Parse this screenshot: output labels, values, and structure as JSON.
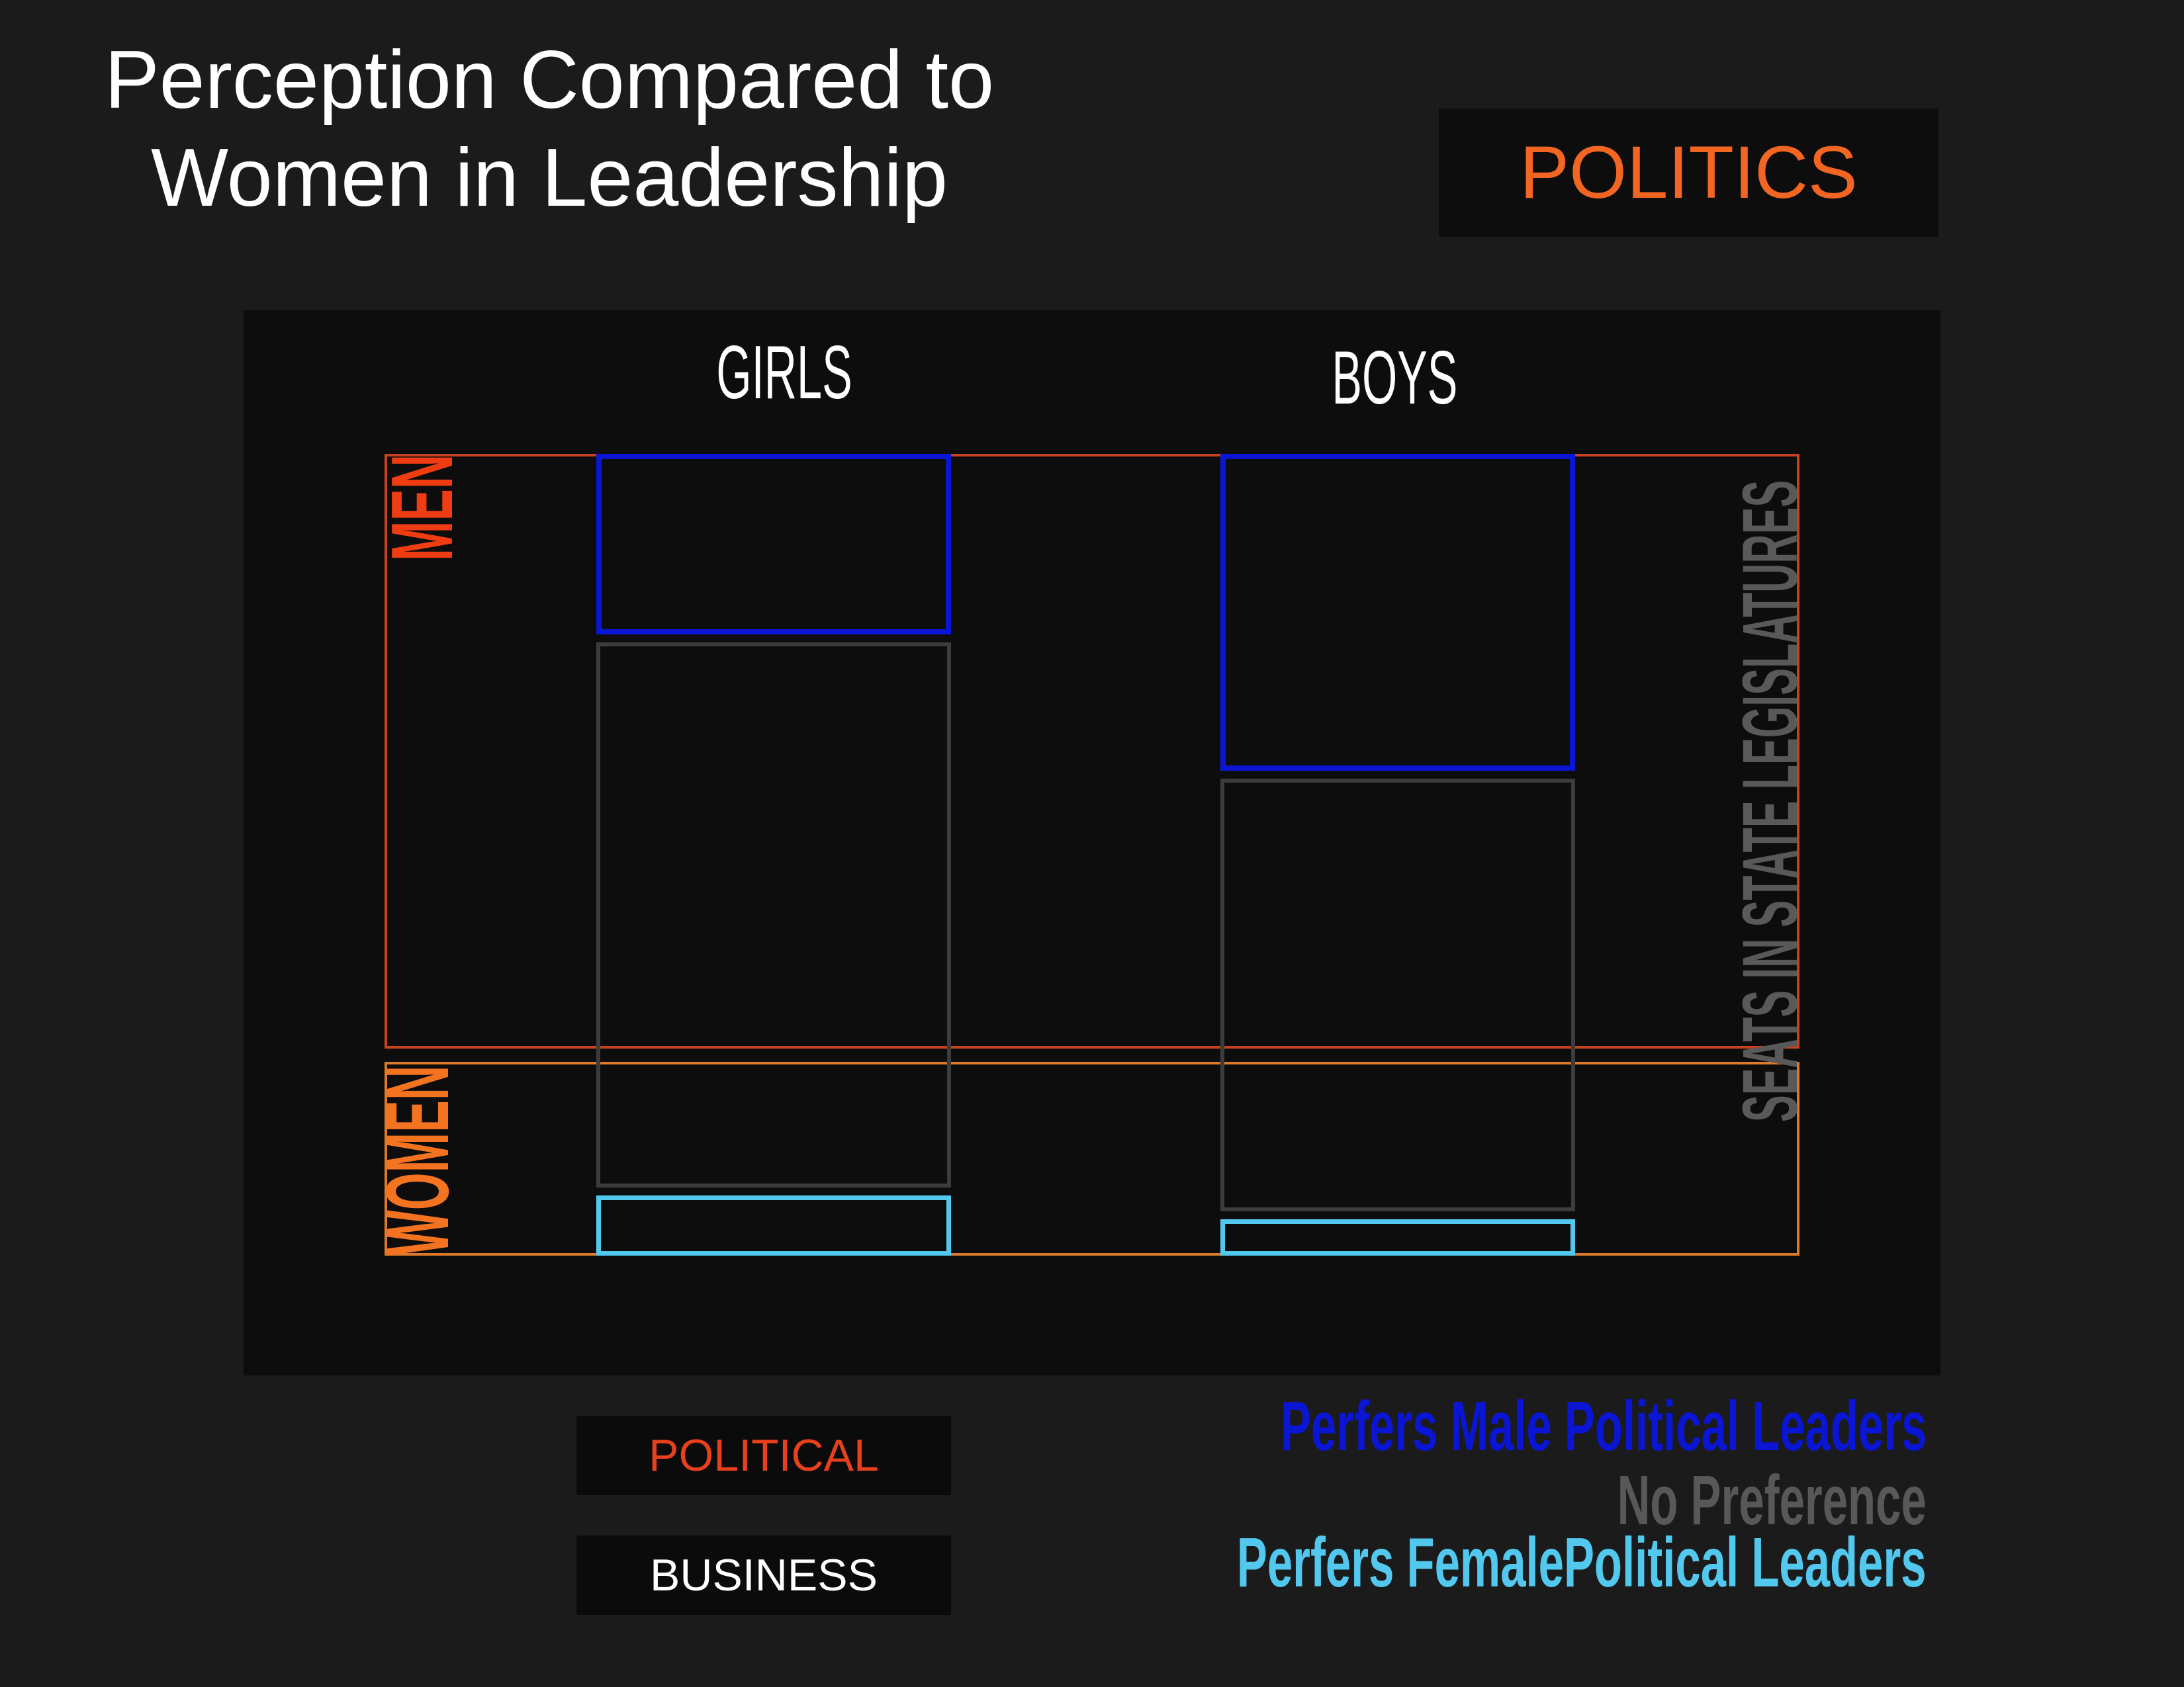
{
  "header": {
    "title_lines": [
      "Perception Compared to",
      "Women in Leadership"
    ],
    "badge": "POLITICS",
    "badge_color": "#f26522"
  },
  "toggle": {
    "active_color": "#e8401c",
    "inactive_color": "#ffffff",
    "buttons": [
      {
        "label": "POLITICAL",
        "active": true
      },
      {
        "label": "BUSINESS",
        "active": false
      }
    ]
  },
  "chart_data": {
    "type": "bar",
    "stacked": true,
    "categories": [
      "GIRLS",
      "BOYS"
    ],
    "series": [
      {
        "name": "Perfers Male Political Leaders",
        "color": "#0b15d4",
        "text_color": "#0b15d4",
        "values": [
          23,
          40
        ]
      },
      {
        "name": "No Preference",
        "color": "#3c3c3c",
        "text_color": "#585858",
        "values": [
          69,
          55
        ]
      },
      {
        "name": "Perfers FemalePolitical Leaders",
        "color": "#52c8ef",
        "text_color": "#52c8ef",
        "values": [
          8,
          5
        ]
      }
    ],
    "reference": {
      "label": "SEATS IN STATE LEGISLATURES",
      "label_color": "#595959",
      "segments": [
        {
          "label": "MEN",
          "value": 75,
          "color": "#c8411e",
          "label_color": "#f03c12"
        },
        {
          "label": "WOMEN",
          "value": 25,
          "color": "#dc7a2a",
          "label_color": "#f47321"
        }
      ]
    },
    "ylim": [
      0,
      100
    ],
    "grid": false,
    "legend": "bottom-right"
  }
}
